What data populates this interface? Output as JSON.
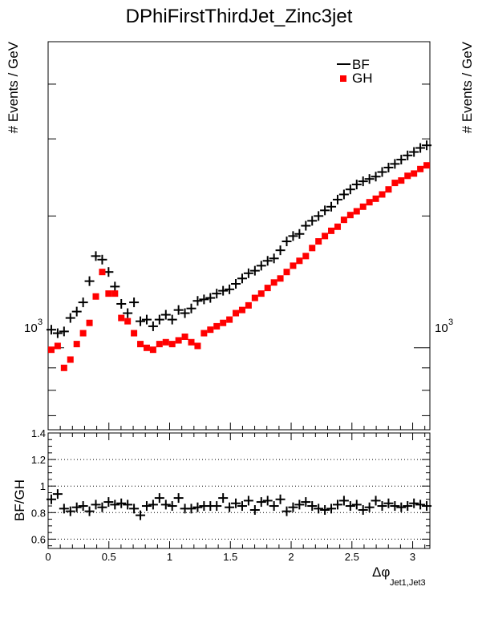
{
  "chart_data": [
    {
      "type": "scatter",
      "title": "DPhiFirstThirdJet_Zinc3jet",
      "ylabel": "# Events / GeV",
      "ylabel_right": "# Events / GeV",
      "yscale": "log",
      "ylim": [
        650,
        5000
      ],
      "xlim": [
        0,
        3.1416
      ],
      "y_tick_label": "10",
      "y_tick_exp": "3",
      "legend_placement": "top-right",
      "x": [
        0.0262,
        0.0785,
        0.1309,
        0.1833,
        0.2356,
        0.288,
        0.3403,
        0.3927,
        0.4451,
        0.4974,
        0.5498,
        0.6021,
        0.6545,
        0.7069,
        0.7592,
        0.8116,
        0.8639,
        0.9163,
        0.9687,
        1.021,
        1.0734,
        1.1257,
        1.1781,
        1.2305,
        1.2828,
        1.3352,
        1.3875,
        1.4399,
        1.4923,
        1.5446,
        1.597,
        1.6493,
        1.7017,
        1.7541,
        1.8064,
        1.8588,
        1.9111,
        1.9635,
        2.0159,
        2.0682,
        2.1206,
        2.1729,
        2.2253,
        2.2777,
        2.33,
        2.3824,
        2.4347,
        2.4871,
        2.5395,
        2.5918,
        2.6442,
        2.6965,
        2.7489,
        2.8013,
        2.8536,
        2.906,
        2.9583,
        3.0107,
        3.0631,
        3.1154
      ],
      "series": [
        {
          "name": "BF",
          "marker": "cross",
          "color": "#000000",
          "values": [
            1100,
            1080,
            1090,
            1170,
            1210,
            1270,
            1420,
            1620,
            1590,
            1490,
            1380,
            1260,
            1200,
            1270,
            1150,
            1160,
            1120,
            1160,
            1190,
            1160,
            1220,
            1200,
            1230,
            1280,
            1290,
            1300,
            1330,
            1350,
            1360,
            1400,
            1440,
            1480,
            1500,
            1540,
            1580,
            1600,
            1670,
            1750,
            1800,
            1820,
            1900,
            1950,
            2000,
            2060,
            2100,
            2180,
            2240,
            2300,
            2360,
            2400,
            2430,
            2460,
            2520,
            2580,
            2630,
            2690,
            2750,
            2800,
            2860,
            2900
          ]
        },
        {
          "name": "GH",
          "marker": "square",
          "color": "#ff0000",
          "values": [
            990,
            1010,
            900,
            940,
            1020,
            1080,
            1140,
            1310,
            1490,
            1330,
            1330,
            1170,
            1150,
            1080,
            1020,
            1000,
            990,
            1020,
            1030,
            1020,
            1040,
            1060,
            1030,
            1010,
            1080,
            1100,
            1120,
            1140,
            1160,
            1200,
            1220,
            1250,
            1300,
            1330,
            1370,
            1410,
            1440,
            1490,
            1540,
            1580,
            1620,
            1690,
            1750,
            1800,
            1850,
            1890,
            1960,
            2010,
            2050,
            2100,
            2150,
            2190,
            2240,
            2300,
            2380,
            2410,
            2470,
            2500,
            2560,
            2610
          ]
        }
      ]
    },
    {
      "type": "scatter",
      "ylabel": "BF/GH",
      "xlabel_main": "Δφ",
      "xlabel_sub": "Jet1,Jet3",
      "xlim": [
        0,
        3.1416
      ],
      "ylim": [
        0.53,
        1.4
      ],
      "grid": "dotted horizontal at 0.6, 0.8, 1.0, 1.2",
      "y_ticks": [
        "0.6",
        "0.8",
        "1",
        "1.2",
        "1.4"
      ],
      "x_ticks": [
        "0",
        "0.5",
        "1",
        "1.5",
        "2",
        "2.5",
        "3"
      ],
      "series": [
        {
          "name": "BF/GH",
          "marker": "cross",
          "color": "#000000",
          "values": [
            0.9,
            0.94,
            0.83,
            0.81,
            0.84,
            0.85,
            0.81,
            0.86,
            0.84,
            0.88,
            0.86,
            0.87,
            0.86,
            0.83,
            0.78,
            0.85,
            0.86,
            0.91,
            0.86,
            0.85,
            0.91,
            0.83,
            0.83,
            0.84,
            0.85,
            0.85,
            0.85,
            0.91,
            0.84,
            0.87,
            0.85,
            0.89,
            0.82,
            0.88,
            0.89,
            0.85,
            0.9,
            0.81,
            0.84,
            0.86,
            0.88,
            0.85,
            0.83,
            0.82,
            0.83,
            0.86,
            0.89,
            0.85,
            0.86,
            0.82,
            0.84,
            0.89,
            0.85,
            0.87,
            0.85,
            0.84,
            0.85,
            0.87,
            0.86,
            0.85
          ]
        }
      ]
    }
  ]
}
